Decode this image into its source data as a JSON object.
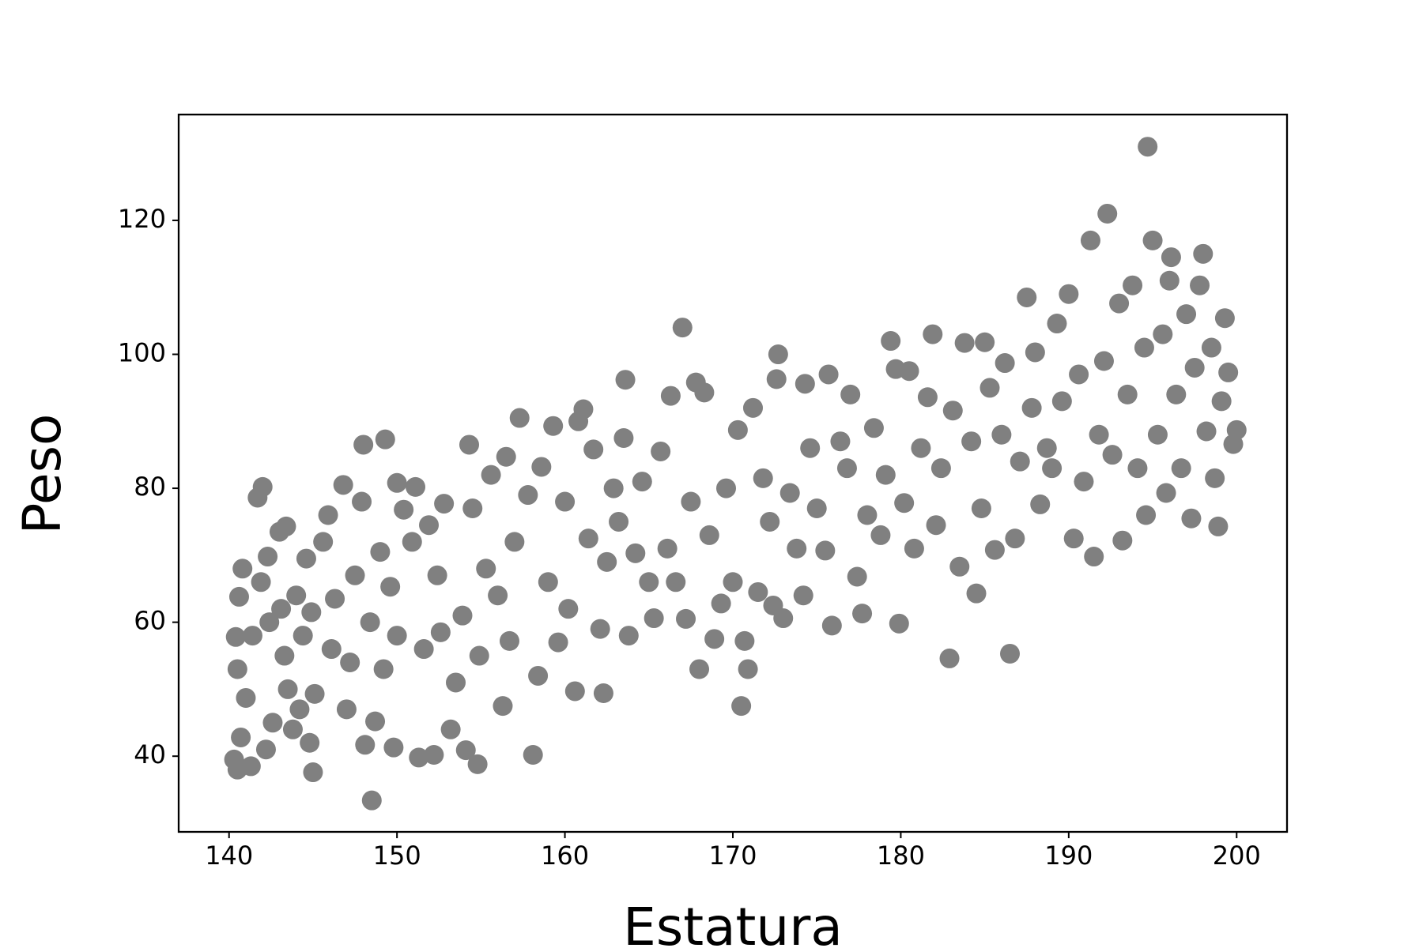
{
  "chart_data": {
    "type": "scatter",
    "xlabel": "Estatura",
    "ylabel": "Peso",
    "color": "#808080",
    "xlim": [
      137.0,
      203.0
    ],
    "ylim": [
      28.7,
      135.8
    ],
    "xticks": [
      140,
      150,
      160,
      170,
      180,
      190,
      200
    ],
    "yticks": [
      40,
      60,
      80,
      100,
      120
    ],
    "x": [
      140.3,
      140.5,
      140.4,
      140.6,
      140.8,
      141,
      140.7,
      140.5,
      141.3,
      141.4,
      141.7,
      142,
      141.9,
      142.3,
      142.4,
      142.2,
      142.6,
      143,
      143.4,
      143.1,
      143.3,
      143.5,
      143.8,
      144,
      144.4,
      144.2,
      144.6,
      144.9,
      145,
      145.1,
      144.8,
      145.6,
      145.9,
      146.1,
      146.3,
      146.8,
      147,
      147.2,
      147.5,
      147.9,
      148,
      148.1,
      148.5,
      148.7,
      148.4,
      149,
      149.3,
      149.2,
      149.6,
      149.8,
      150,
      150,
      150.4,
      150.9,
      151.1,
      151.3,
      151.6,
      151.9,
      152.2,
      152.4,
      152.6,
      152.8,
      153.2,
      153.5,
      153.9,
      154.1,
      154.3,
      154.5,
      154.8,
      154.9,
      155.3,
      155.6,
      156,
      156.3,
      156.5,
      156.7,
      157,
      157.3,
      157.8,
      158.1,
      158.4,
      158.6,
      159,
      159.3,
      159.6,
      160,
      160.2,
      160.6,
      160.8,
      161.1,
      161.4,
      161.7,
      162.1,
      162.3,
      162.5,
      162.9,
      163.2,
      163.5,
      163.6,
      163.8,
      164.2,
      164.6,
      165,
      165.3,
      165.7,
      166.1,
      166.3,
      166.6,
      167,
      167.2,
      167.5,
      167.8,
      168,
      168.3,
      168.6,
      168.9,
      169.3,
      169.6,
      170,
      170.3,
      170.5,
      170.7,
      170.9,
      171.2,
      171.5,
      171.8,
      172.2,
      172.4,
      172.6,
      172.7,
      173,
      173.4,
      173.8,
      174.2,
      174.3,
      174.6,
      175,
      175.5,
      175.7,
      175.9,
      176.4,
      176.8,
      177,
      177.4,
      177.7,
      178,
      178.4,
      178.8,
      179.1,
      179.4,
      179.7,
      179.9,
      180.2,
      180.5,
      180.8,
      181.2,
      181.6,
      181.9,
      182.1,
      182.4,
      182.9,
      183.1,
      183.5,
      183.8,
      184.2,
      184.5,
      184.8,
      185,
      185.3,
      185.6,
      186,
      186.2,
      186.5,
      186.8,
      187.1,
      187.5,
      187.8,
      188,
      188.3,
      188.7,
      189,
      189.3,
      189.6,
      190,
      190.3,
      190.6,
      190.9,
      191.3,
      191.5,
      191.8,
      192.1,
      192.3,
      192.6,
      193,
      193.2,
      193.5,
      193.8,
      194.1,
      194.5,
      194.7,
      194.6,
      195,
      195.3,
      195.6,
      195.8,
      196,
      196.1,
      196.4,
      196.7,
      197,
      197.3,
      197.5,
      197.8,
      198,
      198.2,
      198.5,
      198.7,
      198.9,
      199.1,
      199.3,
      199.5,
      199.8,
      200
    ],
    "y": [
      39.5,
      53,
      57.8,
      63.8,
      68,
      48.7,
      42.8,
      38,
      38.5,
      58,
      78.6,
      80.2,
      66,
      69.8,
      60,
      41,
      45,
      73.5,
      74.3,
      62,
      55,
      50,
      44,
      64,
      58,
      47,
      69.5,
      61.5,
      37.6,
      49.3,
      42,
      72,
      76,
      56,
      63.5,
      80.5,
      47,
      54,
      67,
      78,
      86.5,
      41.7,
      33.4,
      45.2,
      60,
      70.5,
      87.3,
      53,
      65.3,
      41.3,
      80.8,
      58,
      76.8,
      72,
      80.2,
      39.8,
      56,
      74.5,
      40.2,
      67,
      58.5,
      77.7,
      44,
      51,
      61,
      40.9,
      86.5,
      77,
      38.8,
      55,
      68,
      82,
      64,
      47.5,
      84.7,
      57.2,
      72,
      90.5,
      79,
      40.2,
      52,
      83.2,
      66,
      89.3,
      57,
      78,
      62,
      49.7,
      90,
      91.8,
      72.5,
      85.8,
      59,
      49.4,
      69,
      80,
      75,
      87.5,
      96.2,
      58,
      70.3,
      81,
      66,
      60.6,
      85.5,
      71,
      93.8,
      66,
      104,
      60.5,
      78,
      95.8,
      53,
      94.3,
      73,
      57.5,
      62.8,
      80,
      66,
      88.7,
      47.5,
      57.2,
      53,
      92,
      64.5,
      81.5,
      75,
      62.5,
      96.3,
      100,
      60.6,
      79.3,
      71,
      64,
      95.6,
      86,
      77,
      70.7,
      97,
      59.5,
      87,
      83,
      94,
      66.8,
      61.3,
      76,
      89,
      73,
      82,
      102,
      97.8,
      59.8,
      77.8,
      97.5,
      71,
      86,
      93.6,
      103,
      74.5,
      83,
      54.6,
      91.6,
      68.3,
      101.7,
      87,
      64.3,
      77,
      101.8,
      95,
      70.8,
      88,
      98.7,
      55.3,
      72.5,
      84,
      108.5,
      92,
      100.3,
      77.6,
      86,
      83,
      104.6,
      93,
      109,
      72.5,
      97,
      81,
      117,
      69.8,
      88,
      99,
      121,
      85,
      107.6,
      72.2,
      94,
      110.3,
      83,
      101,
      131,
      76,
      117,
      88,
      103,
      79.3,
      111,
      114.5,
      94,
      83,
      106,
      75.5,
      98,
      110.3,
      115,
      88.5,
      101,
      81.5,
      74.3,
      93,
      105.4,
      97.3,
      86.6,
      88.7
    ]
  }
}
